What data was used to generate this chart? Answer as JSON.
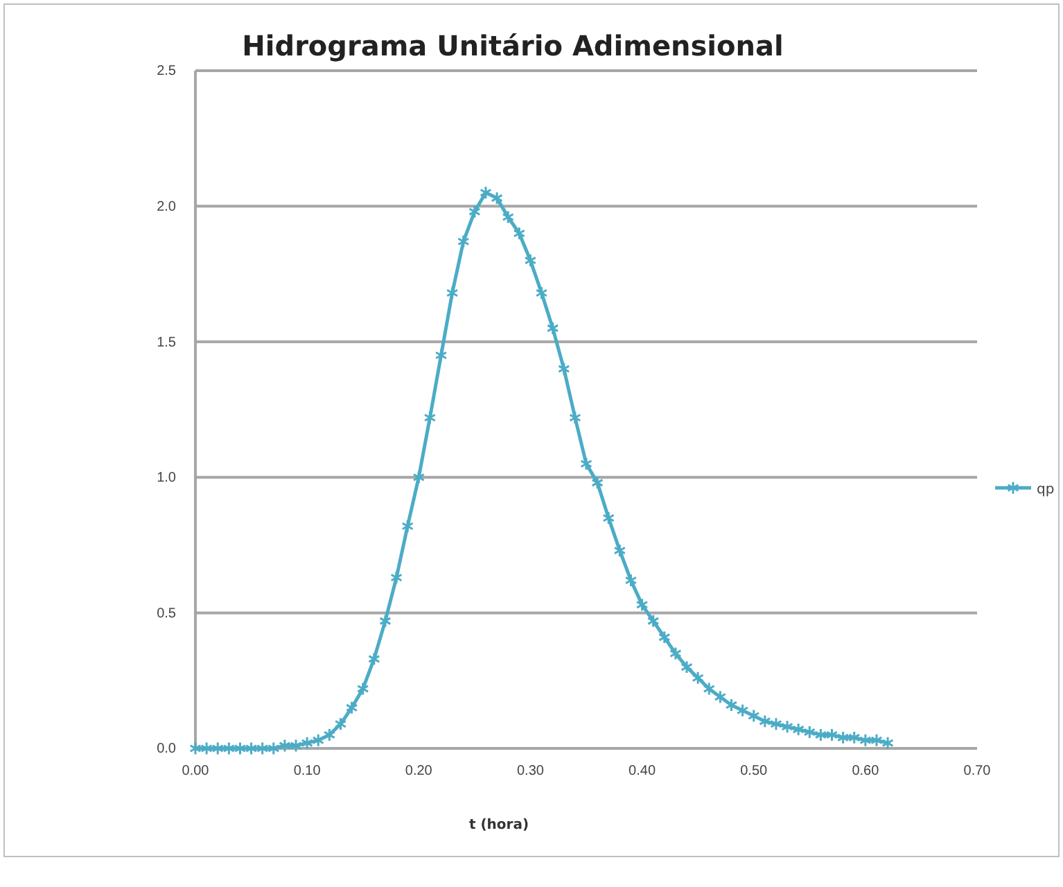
{
  "chart_data": {
    "type": "line",
    "title": "Hidrograma Unitário Adimensional",
    "xlabel": "t (hora)",
    "xlim": [
      0,
      0.7
    ],
    "xticks": [
      {
        "value": 0,
        "label": "0.00"
      },
      {
        "value": 0.1,
        "label": "0.10"
      },
      {
        "value": 0.2,
        "label": "0.20"
      },
      {
        "value": 0.3,
        "label": "0.30"
      },
      {
        "value": 0.4,
        "label": "0.40"
      },
      {
        "value": 0.5,
        "label": "0.50"
      },
      {
        "value": 0.6,
        "label": "0.60"
      },
      {
        "value": 0.7,
        "label": "0.70"
      }
    ],
    "ylim": [
      0,
      2.5
    ],
    "yticks": [
      {
        "value": 0,
        "label": "0.0"
      },
      {
        "value": 0.5,
        "label": "0.5"
      },
      {
        "value": 1,
        "label": "1.0"
      },
      {
        "value": 1.5,
        "label": "1.5"
      },
      {
        "value": 2,
        "label": "2.0"
      },
      {
        "value": 2.5,
        "label": "2.5"
      }
    ],
    "grid": "y",
    "legend": "right",
    "marker": "cross",
    "line_style": "solid",
    "series": [
      {
        "name": "qp",
        "color": "#4bacc6",
        "x": [
          0,
          0.01,
          0.02,
          0.03,
          0.04,
          0.05,
          0.06,
          0.07,
          0.08,
          0.09,
          0.1,
          0.11,
          0.12,
          0.13,
          0.14,
          0.15,
          0.16,
          0.17,
          0.18,
          0.19,
          0.2,
          0.21,
          0.22,
          0.23,
          0.24,
          0.25,
          0.26,
          0.27,
          0.28,
          0.29,
          0.3,
          0.31,
          0.32,
          0.33,
          0.34,
          0.35,
          0.36,
          0.37,
          0.38,
          0.39,
          0.4,
          0.41,
          0.42,
          0.43,
          0.44,
          0.45,
          0.46,
          0.47,
          0.48,
          0.49,
          0.5,
          0.51,
          0.52,
          0.53,
          0.54,
          0.55,
          0.56,
          0.57,
          0.58,
          0.59,
          0.6,
          0.61,
          0.62
        ],
        "values": [
          0,
          0,
          0,
          0,
          0,
          0,
          0,
          0,
          0.01,
          0.01,
          0.02,
          0.03,
          0.05,
          0.09,
          0.15,
          0.22,
          0.33,
          0.47,
          0.63,
          0.82,
          1.0,
          1.22,
          1.45,
          1.68,
          1.87,
          1.98,
          2.05,
          2.03,
          1.96,
          1.9,
          1.8,
          1.68,
          1.55,
          1.4,
          1.22,
          1.05,
          0.98,
          0.85,
          0.73,
          0.62,
          0.53,
          0.47,
          0.41,
          0.35,
          0.3,
          0.26,
          0.22,
          0.19,
          0.16,
          0.14,
          0.12,
          0.1,
          0.09,
          0.08,
          0.07,
          0.06,
          0.05,
          0.05,
          0.04,
          0.04,
          0.03,
          0.03,
          0.02
        ]
      }
    ]
  }
}
